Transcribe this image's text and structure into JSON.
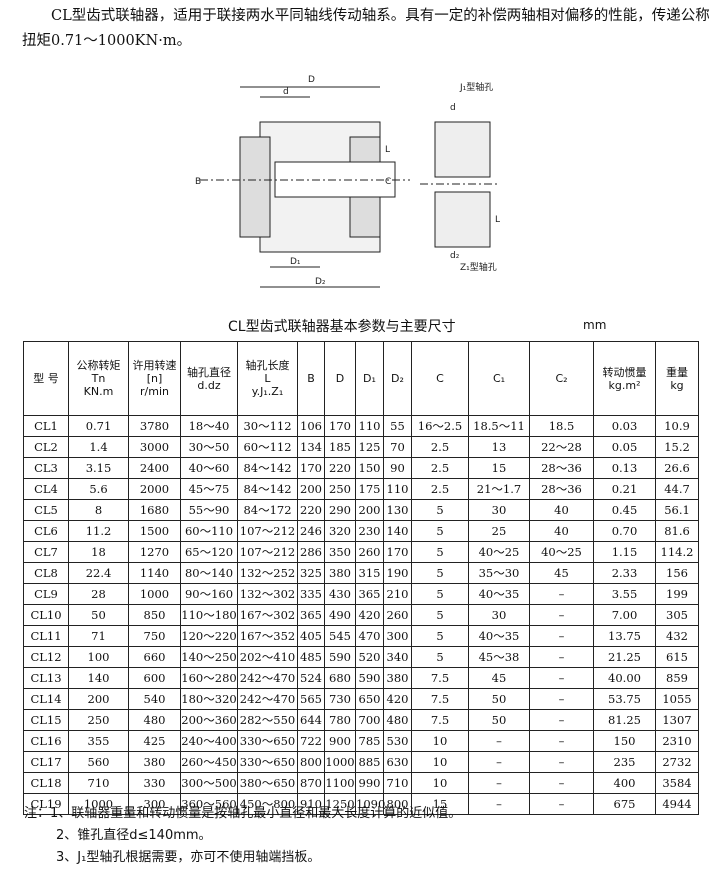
{
  "intro": "CL型齿式联轴器，适用于联接两水平同轴线传动轴系。具有一定的补偿两轴相对偏移的性能，传递公称扭矩0.71～1000KN·m。",
  "drawing": {
    "labels": [
      "D",
      "d",
      "B",
      "D₁",
      "D₂",
      "L",
      "C",
      "J₁型轴孔",
      "Z₁型轴孔",
      "d₂",
      "L",
      "d"
    ]
  },
  "table": {
    "title": "CL型齿式联轴器基本参数与主要尺寸",
    "unit": "mm",
    "header": [
      [
        "型 号"
      ],
      [
        "公称转矩",
        "Tn",
        "KN.m"
      ],
      [
        "许用转速",
        "[n]",
        "r/min"
      ],
      [
        "轴孔直径",
        "d.dz"
      ],
      [
        "轴孔长度",
        "L",
        "y.J₁.Z₁"
      ],
      [
        "B"
      ],
      [
        "D"
      ],
      [
        "D₁"
      ],
      [
        "D₂"
      ],
      [
        "C"
      ],
      [
        "C₁"
      ],
      [
        "C₂"
      ],
      [
        "转动惯量",
        "kg.m²"
      ],
      [
        "重量",
        "kg"
      ]
    ],
    "rows": [
      [
        "CL1",
        "0.71",
        "3780",
        "18～40",
        "30～112",
        "106",
        "170",
        "110",
        "55",
        "16～2.5",
        "18.5～11",
        "18.5",
        "0.03",
        "10.9"
      ],
      [
        "CL2",
        "1.4",
        "3000",
        "30～50",
        "60～112",
        "134",
        "185",
        "125",
        "70",
        "2.5",
        "13",
        "22～28",
        "0.05",
        "15.2"
      ],
      [
        "CL3",
        "3.15",
        "2400",
        "40～60",
        "84～142",
        "170",
        "220",
        "150",
        "90",
        "2.5",
        "15",
        "28～36",
        "0.13",
        "26.6"
      ],
      [
        "CL4",
        "5.6",
        "2000",
        "45～75",
        "84～142",
        "200",
        "250",
        "175",
        "110",
        "2.5",
        "21～1.7",
        "28～36",
        "0.21",
        "44.7"
      ],
      [
        "CL5",
        "8",
        "1680",
        "55～90",
        "84～172",
        "220",
        "290",
        "200",
        "130",
        "5",
        "30",
        "40",
        "0.45",
        "56.1"
      ],
      [
        "CL6",
        "11.2",
        "1500",
        "60～110",
        "107～212",
        "246",
        "320",
        "230",
        "140",
        "5",
        "25",
        "40",
        "0.70",
        "81.6"
      ],
      [
        "CL7",
        "18",
        "1270",
        "65～120",
        "107～212",
        "286",
        "350",
        "260",
        "170",
        "5",
        "40～25",
        "40～25",
        "1.15",
        "114.2"
      ],
      [
        "CL8",
        "22.4",
        "1140",
        "80～140",
        "132～252",
        "325",
        "380",
        "315",
        "190",
        "5",
        "35～30",
        "45",
        "2.33",
        "156"
      ],
      [
        "CL9",
        "28",
        "1000",
        "90～160",
        "132～302",
        "335",
        "430",
        "365",
        "210",
        "5",
        "40～35",
        "–",
        "3.55",
        "199"
      ],
      [
        "CL10",
        "50",
        "850",
        "110～180",
        "167～302",
        "365",
        "490",
        "420",
        "260",
        "5",
        "30",
        "–",
        "7.00",
        "305"
      ],
      [
        "CL11",
        "71",
        "750",
        "120～220",
        "167～352",
        "405",
        "545",
        "470",
        "300",
        "5",
        "40～35",
        "–",
        "13.75",
        "432"
      ],
      [
        "CL12",
        "100",
        "660",
        "140～250",
        "202～410",
        "485",
        "590",
        "520",
        "340",
        "5",
        "45～38",
        "–",
        "21.25",
        "615"
      ],
      [
        "CL13",
        "140",
        "600",
        "160～280",
        "242～470",
        "524",
        "680",
        "590",
        "380",
        "7.5",
        "45",
        "–",
        "40.00",
        "859"
      ],
      [
        "CL14",
        "200",
        "540",
        "180～320",
        "242～470",
        "565",
        "730",
        "650",
        "420",
        "7.5",
        "50",
        "–",
        "53.75",
        "1055"
      ],
      [
        "CL15",
        "250",
        "480",
        "200～360",
        "282～550",
        "644",
        "780",
        "700",
        "480",
        "7.5",
        "50",
        "–",
        "81.25",
        "1307"
      ],
      [
        "CL16",
        "355",
        "425",
        "240～400",
        "330～650",
        "722",
        "900",
        "785",
        "530",
        "10",
        "–",
        "–",
        "150",
        "2310"
      ],
      [
        "CL17",
        "560",
        "380",
        "260～450",
        "330～650",
        "800",
        "1000",
        "885",
        "630",
        "10",
        "–",
        "–",
        "235",
        "2732"
      ],
      [
        "CL18",
        "710",
        "330",
        "300～500",
        "380～650",
        "870",
        "1100",
        "990",
        "710",
        "10",
        "–",
        "–",
        "400",
        "3584"
      ],
      [
        "CL19",
        "1000",
        "300",
        "360～560",
        "450～800",
        "910",
        "1250",
        "1090",
        "800",
        "15",
        "–",
        "–",
        "675",
        "4944"
      ]
    ]
  },
  "notes": [
    "注：1、联轴器重量和转动惯量是按轴孔最小直径和最大长度计算的近似值。",
    "2、锥孔直径d≤140mm。",
    "3、J₁型轴孔根据需要，亦可不使用轴端挡板。"
  ]
}
